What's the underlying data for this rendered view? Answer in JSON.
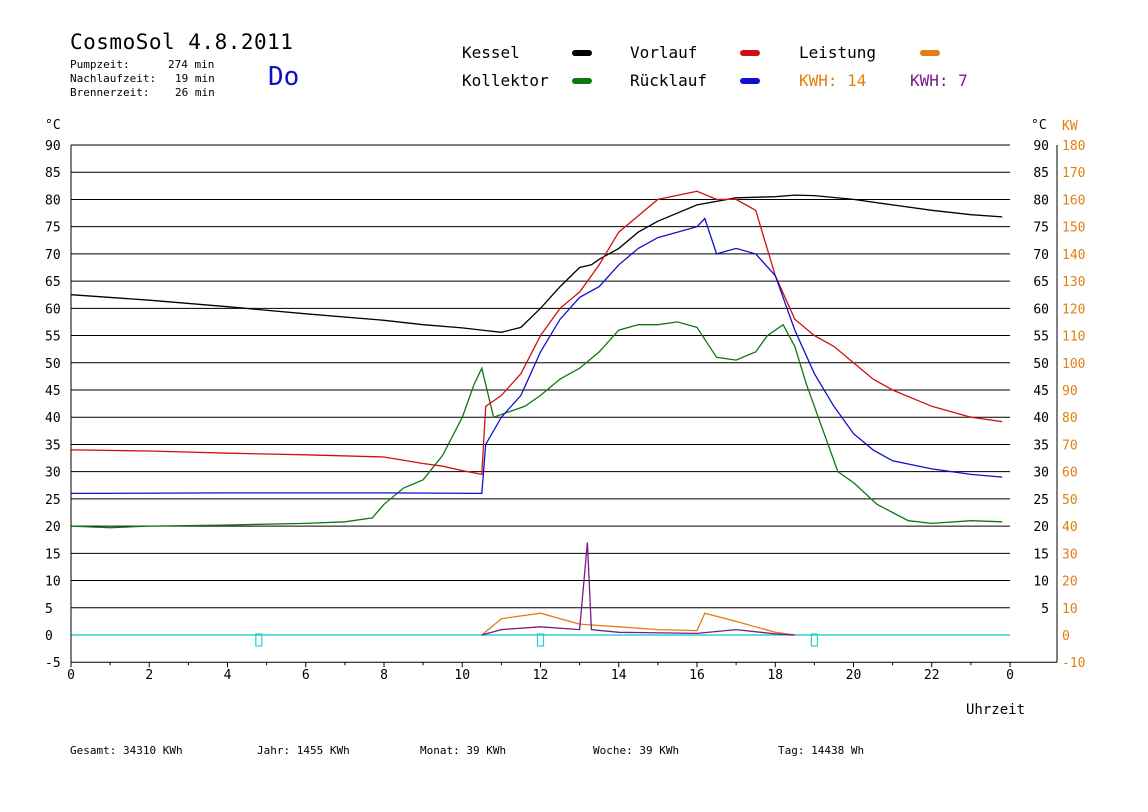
{
  "header": {
    "title": "CosmoSol 4.8.2011",
    "day": "Do",
    "stats": [
      {
        "label": "Pumpzeit:",
        "value": "274 min"
      },
      {
        "label": "Nachlaufzeit:",
        "value": "19 min"
      },
      {
        "label": "Brennerzeit:",
        "value": "26 min"
      }
    ]
  },
  "legend": {
    "kessel": "Kessel",
    "kollektor": "Kollektor",
    "vorlauf": "Vorlauf",
    "ruecklauf": "Rücklauf",
    "leistung": "Leistung",
    "kwh1": "KWH: 14",
    "kwh2": "KWH: 7"
  },
  "footer": {
    "gesamt": "Gesamt:  34310 KWh",
    "jahr": "Jahr:   1455 KWh",
    "monat": "Monat:     39 KWh",
    "woche": "Woche:     39 KWh",
    "tag": "Tag:  14438 Wh"
  },
  "chart_data": {
    "type": "line",
    "xlabel": "Uhrzeit",
    "y_left_label": "°C",
    "y_right_label_1": "°C",
    "y_right_label_2": "KW",
    "xlim": [
      0,
      24
    ],
    "ylim": [
      -5,
      90
    ],
    "x_ticks": [
      "0",
      "2",
      "4",
      "6",
      "8",
      "10",
      "12",
      "14",
      "16",
      "18",
      "20",
      "22",
      "0"
    ],
    "y_ticks": [
      -5,
      0,
      5,
      10,
      15,
      20,
      25,
      30,
      35,
      40,
      45,
      50,
      55,
      60,
      65,
      70,
      75,
      80,
      85,
      90
    ],
    "y_right_ticks": [
      5,
      10,
      15,
      20,
      25,
      30,
      35,
      40,
      45,
      50,
      55,
      60,
      65,
      70,
      75,
      80,
      85,
      90
    ],
    "kw_ticks": [
      -10,
      0,
      10,
      20,
      30,
      40,
      50,
      60,
      70,
      80,
      90,
      100,
      110,
      120,
      130,
      140,
      150,
      160,
      170,
      180
    ],
    "grid": true,
    "colors": {
      "kessel": "#000000",
      "kollektor": "#107810",
      "vorlauf": "#d01010",
      "ruecklauf": "#1010d0",
      "leistung": "#e08010",
      "kwh2": "#7a1a8a",
      "baseline": "#30d0d0"
    },
    "series": [
      {
        "name": "Kessel",
        "key": "kessel",
        "points": [
          [
            0,
            62.5
          ],
          [
            2,
            61.5
          ],
          [
            4,
            60.3
          ],
          [
            6,
            59
          ],
          [
            8,
            57.8
          ],
          [
            9,
            57
          ],
          [
            10,
            56.4
          ],
          [
            10.5,
            56
          ],
          [
            11,
            55.6
          ],
          [
            11.5,
            56.5
          ],
          [
            12,
            60
          ],
          [
            12.5,
            64
          ],
          [
            13,
            67.5
          ],
          [
            13.3,
            68
          ],
          [
            13.5,
            69
          ],
          [
            14,
            71
          ],
          [
            14.5,
            74
          ],
          [
            15,
            76
          ],
          [
            16,
            79
          ],
          [
            17,
            80.3
          ],
          [
            18,
            80.5
          ],
          [
            18.5,
            80.8
          ],
          [
            19,
            80.7
          ],
          [
            20,
            80
          ],
          [
            21,
            79
          ],
          [
            22,
            78
          ],
          [
            23,
            77.2
          ],
          [
            23.8,
            76.8
          ]
        ]
      },
      {
        "name": "Kollektor",
        "key": "kollektor",
        "points": [
          [
            0,
            20
          ],
          [
            1,
            19.7
          ],
          [
            2,
            20
          ],
          [
            4,
            20.2
          ],
          [
            6,
            20.5
          ],
          [
            7,
            20.8
          ],
          [
            7.7,
            21.5
          ],
          [
            8,
            24
          ],
          [
            8.5,
            27
          ],
          [
            9,
            28.5
          ],
          [
            9.5,
            33
          ],
          [
            10,
            40
          ],
          [
            10.3,
            46
          ],
          [
            10.5,
            49
          ],
          [
            10.8,
            40
          ],
          [
            11.2,
            41
          ],
          [
            11.6,
            42
          ],
          [
            12,
            44
          ],
          [
            12.5,
            47
          ],
          [
            13,
            49
          ],
          [
            13.5,
            52
          ],
          [
            14,
            56
          ],
          [
            14.5,
            57
          ],
          [
            15,
            57
          ],
          [
            15.5,
            57.5
          ],
          [
            16,
            56.5
          ],
          [
            16.5,
            51
          ],
          [
            17,
            50.5
          ],
          [
            17.5,
            52
          ],
          [
            17.8,
            55
          ],
          [
            18.2,
            57
          ],
          [
            18.5,
            53
          ],
          [
            18.8,
            46
          ],
          [
            19.2,
            38
          ],
          [
            19.6,
            30
          ],
          [
            20,
            28
          ],
          [
            20.3,
            26
          ],
          [
            20.6,
            24
          ],
          [
            21,
            22.5
          ],
          [
            21.4,
            21
          ],
          [
            22,
            20.5
          ],
          [
            23,
            21
          ],
          [
            23.8,
            20.8
          ]
        ]
      },
      {
        "name": "Vorlauf",
        "key": "vorlauf",
        "points": [
          [
            0,
            34
          ],
          [
            2,
            33.8
          ],
          [
            4,
            33.4
          ],
          [
            6,
            33.1
          ],
          [
            8,
            32.7
          ],
          [
            9,
            31.5
          ],
          [
            9.5,
            31
          ],
          [
            10,
            30.2
          ],
          [
            10.5,
            29.5
          ],
          [
            10.6,
            42
          ],
          [
            11,
            44
          ],
          [
            11.5,
            48
          ],
          [
            12,
            55
          ],
          [
            12.5,
            60
          ],
          [
            13,
            63
          ],
          [
            13.3,
            66
          ],
          [
            13.5,
            68
          ],
          [
            14,
            74
          ],
          [
            14.5,
            77
          ],
          [
            15,
            80
          ],
          [
            16,
            81.5
          ],
          [
            16.5,
            80
          ],
          [
            17,
            80
          ],
          [
            17.5,
            78
          ],
          [
            18,
            66
          ],
          [
            18.5,
            58
          ],
          [
            19,
            55
          ],
          [
            19.5,
            53
          ],
          [
            20,
            50
          ],
          [
            20.5,
            47
          ],
          [
            21,
            45
          ],
          [
            21.5,
            43.5
          ],
          [
            22,
            42
          ],
          [
            23,
            40
          ],
          [
            23.8,
            39.2
          ]
        ]
      },
      {
        "name": "Rücklauf",
        "key": "ruecklauf",
        "points": [
          [
            0,
            26
          ],
          [
            4,
            26.1
          ],
          [
            8,
            26.1
          ],
          [
            10.5,
            26
          ],
          [
            10.6,
            35
          ],
          [
            11,
            40
          ],
          [
            11.5,
            44
          ],
          [
            12,
            52
          ],
          [
            12.5,
            58
          ],
          [
            13,
            62
          ],
          [
            13.5,
            64
          ],
          [
            14,
            68
          ],
          [
            14.5,
            71
          ],
          [
            15,
            73
          ],
          [
            16,
            75
          ],
          [
            16.2,
            76.5
          ],
          [
            16.5,
            70
          ],
          [
            17,
            71
          ],
          [
            17.5,
            70
          ],
          [
            18,
            66
          ],
          [
            18.5,
            56
          ],
          [
            19,
            48
          ],
          [
            19.5,
            42
          ],
          [
            20,
            37
          ],
          [
            20.5,
            34
          ],
          [
            21,
            32
          ],
          [
            22,
            30.5
          ],
          [
            23,
            29.5
          ],
          [
            23.8,
            29
          ]
        ]
      },
      {
        "name": "Leistung",
        "key": "leistung",
        "points": [
          [
            10.5,
            0
          ],
          [
            11,
            3
          ],
          [
            12,
            4
          ],
          [
            13,
            2
          ],
          [
            14,
            1.5
          ],
          [
            15,
            1
          ],
          [
            16,
            0.8
          ],
          [
            16.2,
            4
          ],
          [
            17,
            2.5
          ],
          [
            18,
            0.5
          ],
          [
            18.5,
            0
          ]
        ]
      },
      {
        "name": "KWH: 7",
        "key": "kwh2",
        "points": [
          [
            10.5,
            0
          ],
          [
            11,
            1
          ],
          [
            12,
            1.5
          ],
          [
            13,
            1
          ],
          [
            13.2,
            17
          ],
          [
            13.3,
            1
          ],
          [
            14,
            0.5
          ],
          [
            16,
            0.3
          ],
          [
            17,
            1
          ],
          [
            18,
            0.2
          ],
          [
            18.5,
            0
          ]
        ]
      }
    ]
  }
}
